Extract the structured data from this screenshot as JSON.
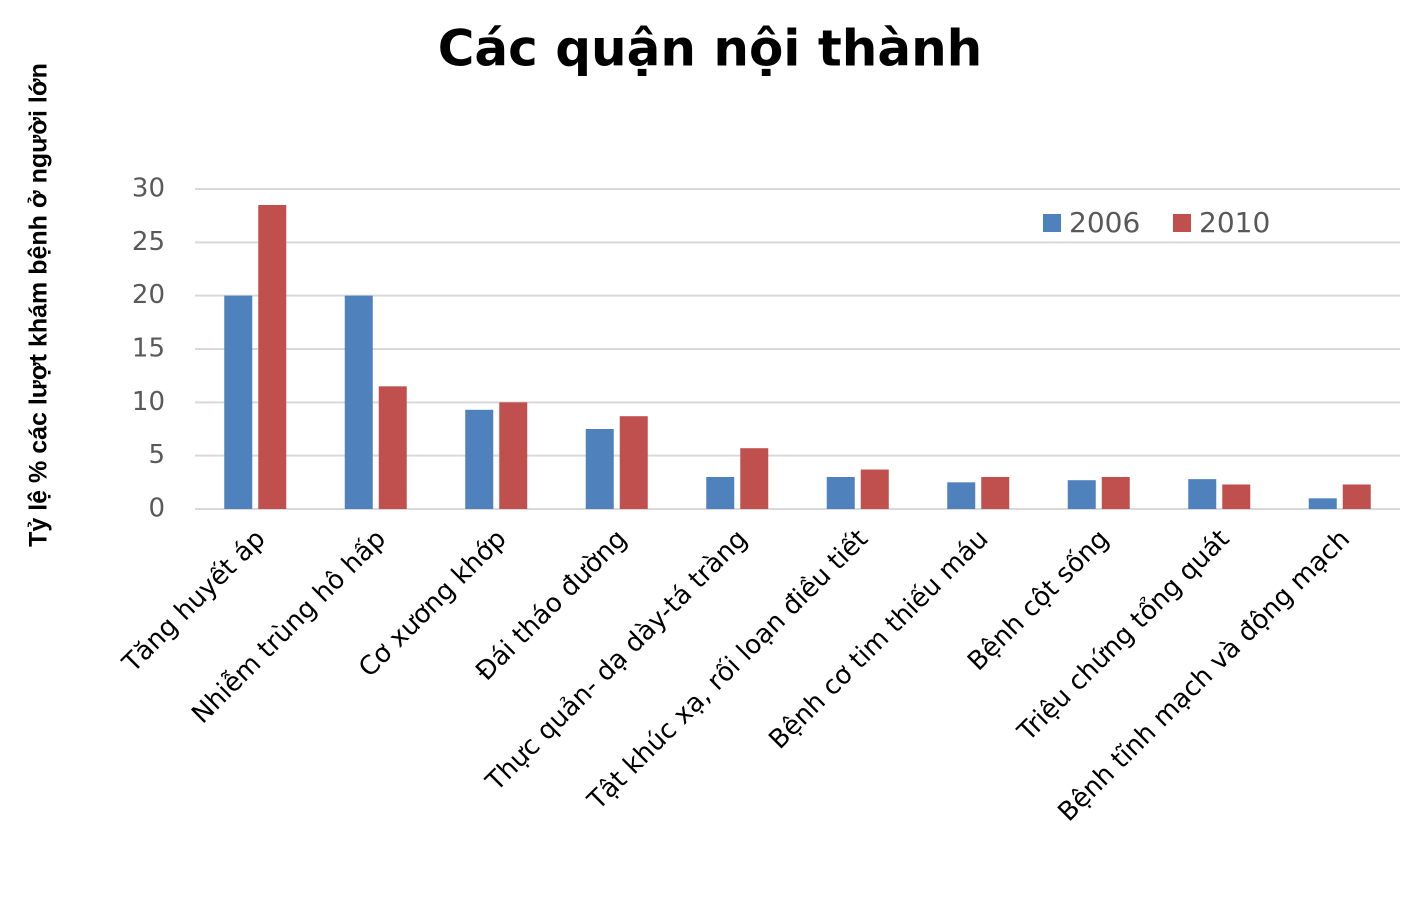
{
  "chart_data": {
    "type": "bar",
    "title": "Các quận nội thành",
    "y_label": "Tỷ lệ % các lượt khám bệnh ở người lớn",
    "categories": [
      "Tăng huyết áp",
      "Nhiễm trùng hô hấp",
      "Cơ xương khớp",
      "Đái tháo đường",
      "Thực quản- dạ dày-tá tràng",
      "Tật khúc xạ, rối loạn điều tiết",
      "Bệnh cơ tim thiếu máu",
      "Bệnh cột sống",
      "Triệu chứng tổng quát",
      "Bệnh tĩnh mạch và động mạch"
    ],
    "series": [
      {
        "name": "2006",
        "color": "#4f81bd",
        "values": [
          20,
          20,
          9.3,
          7.5,
          3,
          3,
          2.5,
          2.7,
          2.8,
          1
        ]
      },
      {
        "name": "2010",
        "color": "#c0504d",
        "values": [
          28.5,
          11.5,
          10,
          8.7,
          5.7,
          3.7,
          3,
          3,
          2.3,
          2.3
        ]
      }
    ],
    "ylim": [
      0,
      30
    ],
    "yticks": [
      0,
      5,
      10,
      15,
      20,
      25,
      30
    ],
    "grid": true,
    "legend": "upper right"
  }
}
